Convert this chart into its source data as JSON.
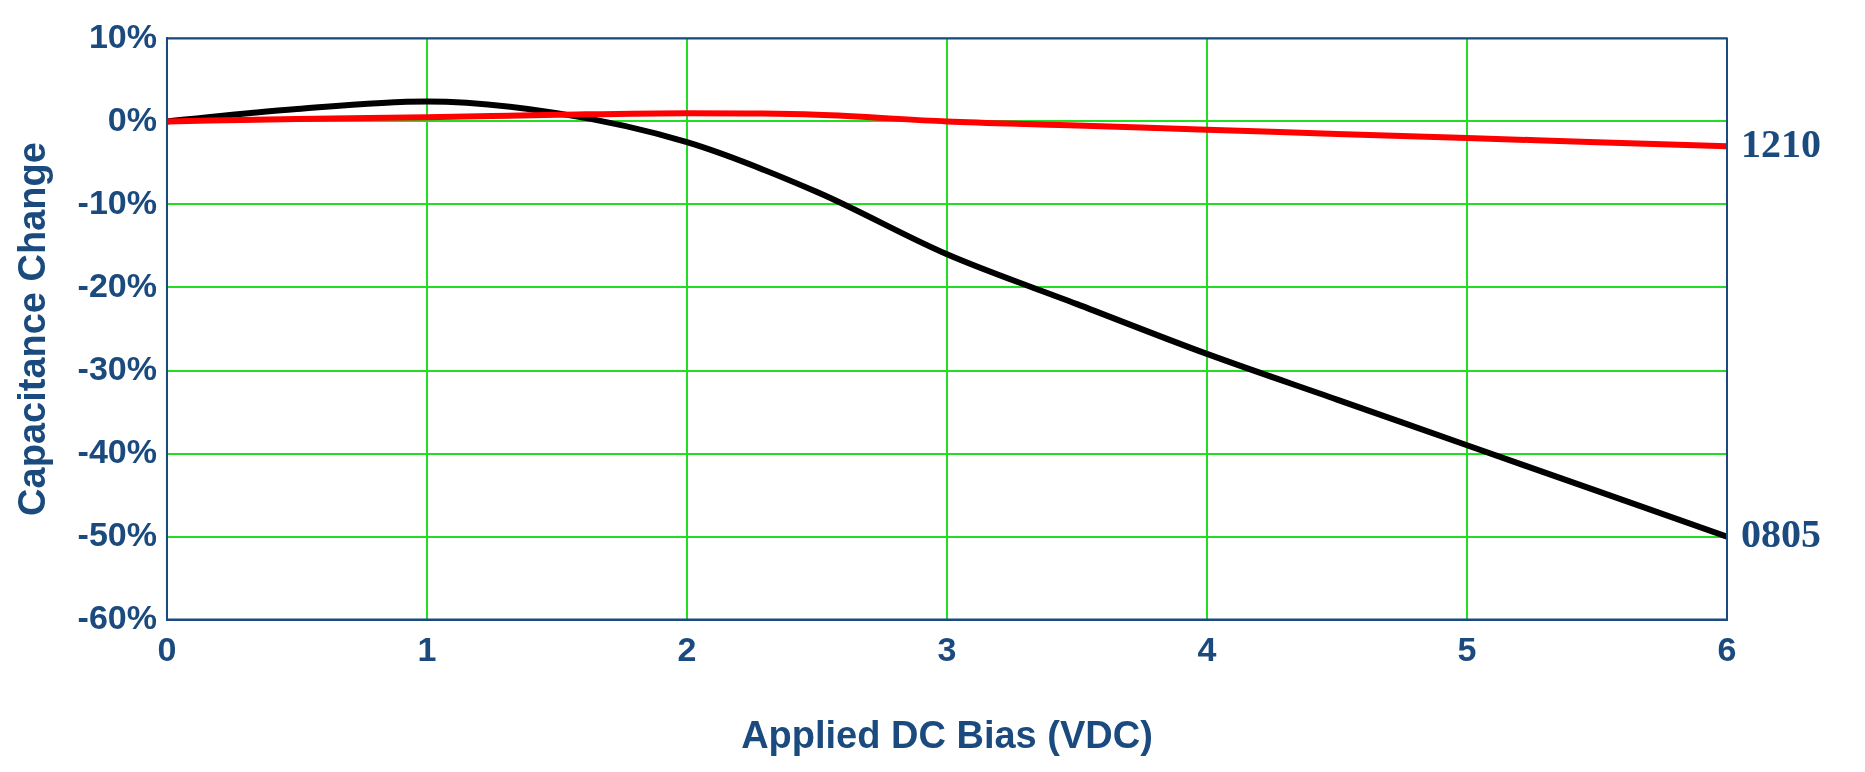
{
  "chart_data": {
    "type": "line",
    "xlabel": "Applied DC Bias (VDC)",
    "ylabel": "Capacitance Change",
    "x": [
      0,
      0.5,
      1,
      1.5,
      2,
      2.5,
      3,
      3.5,
      4,
      4.5,
      5,
      5.5,
      6
    ],
    "series": [
      {
        "name": "1210",
        "color": "#ff0000",
        "values": [
          0,
          0.3,
          0.5,
          0.8,
          1,
          0.8,
          0,
          -0.5,
          -1,
          -1.5,
          -2,
          -2.5,
          -3
        ]
      },
      {
        "name": "0805",
        "color": "#000000",
        "values": [
          0,
          1.5,
          2.4,
          1,
          -2.5,
          -8.5,
          -16,
          -22,
          -28,
          -33.5,
          -39,
          -44.5,
          -50
        ]
      }
    ],
    "xlim": [
      0,
      6
    ],
    "xticks": [
      0,
      1,
      2,
      3,
      4,
      5,
      6
    ],
    "ylim": [
      -60,
      10
    ],
    "yticks": [
      {
        "value": -60,
        "label": "-60%"
      },
      {
        "value": -50,
        "label": "-50%"
      },
      {
        "value": -40,
        "label": "-40%"
      },
      {
        "value": -30,
        "label": "-30%"
      },
      {
        "value": -20,
        "label": "-20%"
      },
      {
        "value": -10,
        "label": "-10%"
      },
      {
        "value": 0,
        "label": "0%"
      },
      {
        "value": 10,
        "label": "10%"
      }
    ],
    "grid": true,
    "legend": false,
    "marker": "none",
    "line_style": "solid"
  }
}
